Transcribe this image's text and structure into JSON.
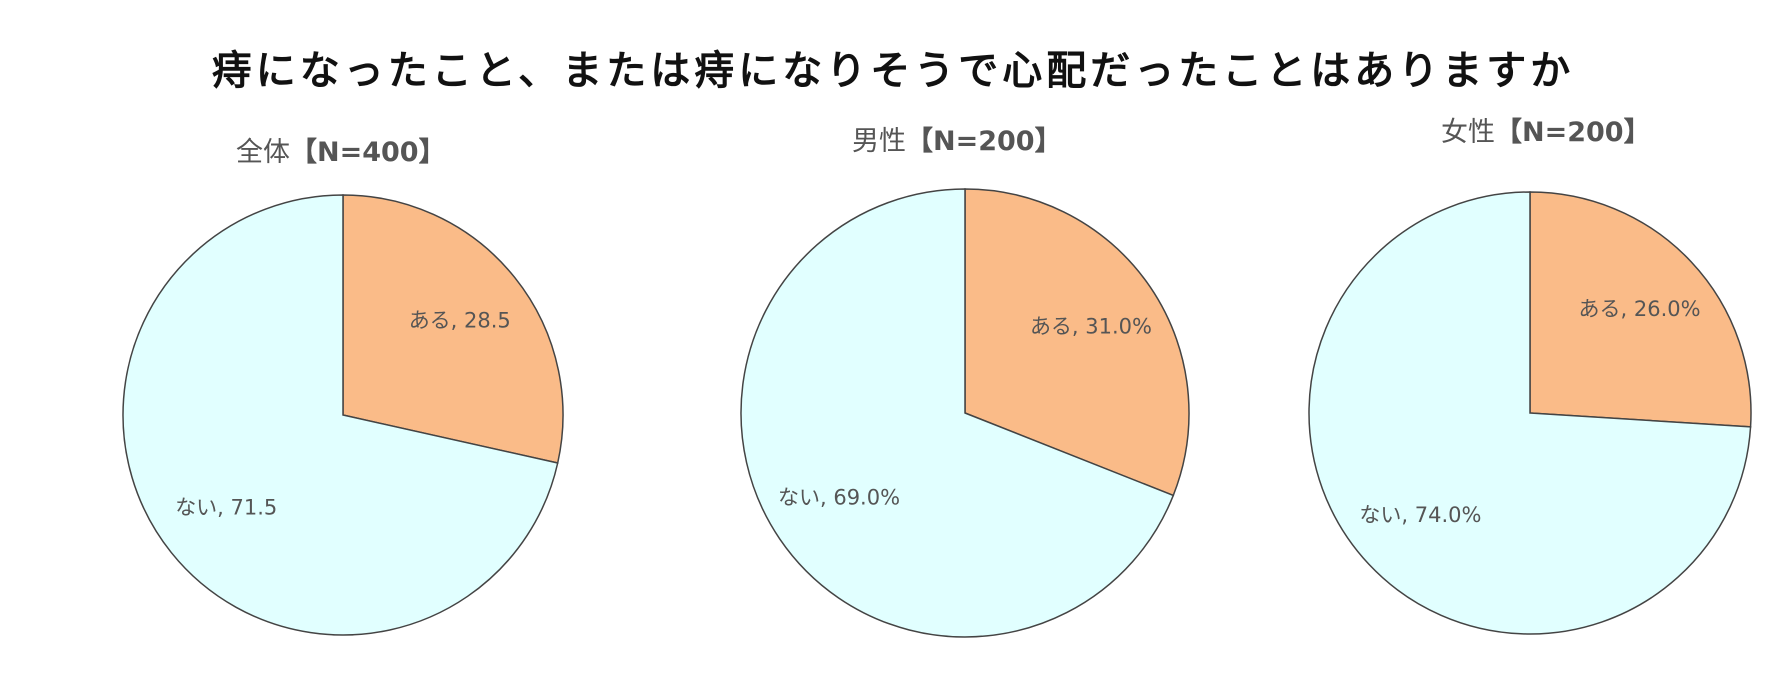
{
  "title": "痔になったこと、または痔になりそうで心配だったことはありますか",
  "colors": {
    "aru": "#FABB88",
    "nai": "#E1FFFF",
    "edge": "#444444"
  },
  "chart_data": [
    {
      "type": "pie",
      "title_main": "全体",
      "title_n": "【N=400】",
      "slices": [
        {
          "label": "ある",
          "value": 28.5,
          "display": "ある, 28.5"
        },
        {
          "label": "ない",
          "value": 71.5,
          "display": "ない, 71.5"
        }
      ]
    },
    {
      "type": "pie",
      "title_main": "男性",
      "title_n": "【N=200】",
      "slices": [
        {
          "label": "ある",
          "value": 31.0,
          "display": "ある, 31.0%"
        },
        {
          "label": "ない",
          "value": 69.0,
          "display": "ない, 69.0%"
        }
      ]
    },
    {
      "type": "pie",
      "title_main": "女性",
      "title_n": "【N=200】",
      "slices": [
        {
          "label": "ある",
          "value": 26.0,
          "display": "ある, 26.0%"
        },
        {
          "label": "ない",
          "value": 74.0,
          "display": "ない, 74.0%"
        }
      ]
    }
  ]
}
